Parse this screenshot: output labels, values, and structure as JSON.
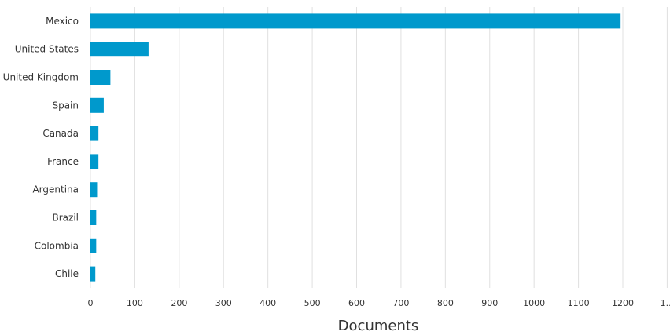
{
  "chart_data": {
    "type": "bar",
    "orientation": "horizontal",
    "categories": [
      "Mexico",
      "United States",
      "United Kingdom",
      "Spain",
      "Canada",
      "France",
      "Argentina",
      "Brazil",
      "Colombia",
      "Chile"
    ],
    "values": [
      1195,
      131,
      45,
      30,
      18,
      18,
      15,
      13,
      13,
      11
    ],
    "xlabel": "Documents",
    "ylabel": "",
    "xlim": [
      0,
      1300
    ],
    "x_ticks": [
      "0",
      "100",
      "200",
      "300",
      "400",
      "500",
      "600",
      "700",
      "800",
      "900",
      "1000",
      "1100",
      "1200",
      "1..."
    ],
    "grid": "vertical",
    "legend": "none",
    "bar_color": "#0099cc"
  }
}
